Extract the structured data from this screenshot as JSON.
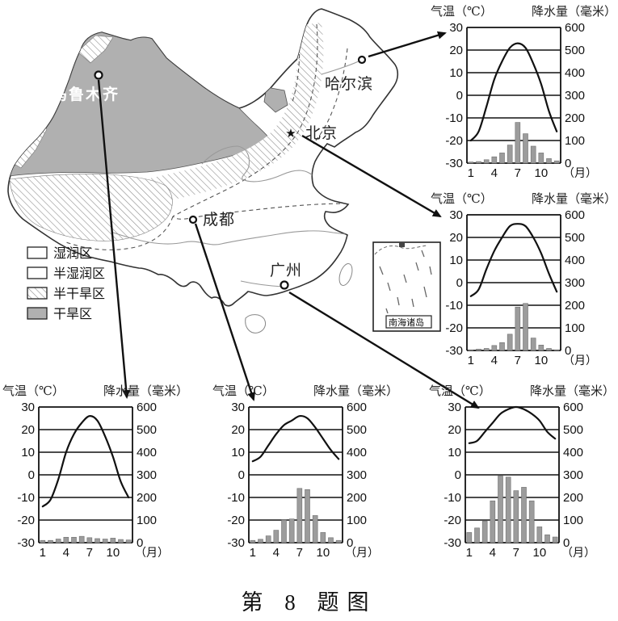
{
  "figure": {
    "caption": "第 8 题图"
  },
  "map": {
    "legend": [
      {
        "label": "湿润区",
        "style": "white"
      },
      {
        "label": "半湿润区",
        "style": "white"
      },
      {
        "label": "半干旱区",
        "style": "hatch"
      },
      {
        "label": "干旱区",
        "style": "gray"
      }
    ],
    "cities": [
      {
        "name": "乌鲁木齐",
        "marker": "circle"
      },
      {
        "name": "哈尔滨",
        "marker": "circle"
      },
      {
        "name": "北京",
        "marker": "star",
        "marker_glyph": "★"
      },
      {
        "name": "成都",
        "marker": "circle"
      },
      {
        "name": "广州",
        "marker": "circle"
      }
    ],
    "inset_label": "南海诸岛",
    "colors": {
      "arid_fill": "#b0b0b0",
      "outline": "#333333",
      "bar_fill": "#9c9c9c",
      "line": "#111111"
    }
  },
  "chart_axes": {
    "temp_label": "气温（℃）",
    "precip_label": "降水量（毫米）",
    "temp_ticks": [
      30,
      20,
      10,
      0,
      -10,
      -20,
      -30
    ],
    "precip_ticks": [
      600,
      500,
      400,
      300,
      200,
      100,
      0
    ],
    "x_tick_labels": [
      "1",
      "4",
      "7",
      "10"
    ],
    "x_unit_label": "（月）",
    "temp_axis_range": [
      -30,
      30
    ],
    "precip_axis_range": [
      0,
      600
    ]
  },
  "chart_data": [
    {
      "type": "line+bar",
      "city": "哈尔滨",
      "position": "top-right",
      "x": [
        1,
        2,
        3,
        4,
        5,
        6,
        7,
        8,
        9,
        10,
        11,
        12
      ],
      "temperature_c": [
        -20,
        -16,
        -5,
        7,
        15,
        21,
        23,
        21,
        14,
        5,
        -7,
        -16
      ],
      "precipitation_mm": [
        5,
        7,
        15,
        28,
        45,
        80,
        180,
        130,
        75,
        45,
        20,
        10
      ]
    },
    {
      "type": "line+bar",
      "city": "北京",
      "position": "middle-right",
      "x": [
        1,
        2,
        3,
        4,
        5,
        6,
        7,
        8,
        9,
        10,
        11,
        12
      ],
      "temperature_c": [
        -6,
        -3,
        6,
        14,
        20,
        25,
        26,
        25,
        20,
        13,
        4,
        -4
      ],
      "precipitation_mm": [
        3,
        6,
        9,
        22,
        35,
        72,
        192,
        208,
        55,
        24,
        9,
        3
      ]
    },
    {
      "type": "line+bar",
      "city": "乌鲁木齐",
      "position": "bottom-left",
      "x": [
        1,
        2,
        3,
        4,
        5,
        6,
        7,
        8,
        9,
        10,
        11,
        12
      ],
      "temperature_c": [
        -14,
        -11,
        -2,
        10,
        18,
        23,
        26,
        24,
        17,
        8,
        -3,
        -10
      ],
      "precipitation_mm": [
        10,
        10,
        16,
        24,
        24,
        28,
        22,
        18,
        16,
        20,
        14,
        12
      ]
    },
    {
      "type": "line+bar",
      "city": "成都",
      "position": "bottom-middle",
      "x": [
        1,
        2,
        3,
        4,
        5,
        6,
        7,
        8,
        9,
        10,
        11,
        12
      ],
      "temperature_c": [
        6,
        8,
        13,
        18,
        22,
        24,
        26,
        25,
        21,
        16,
        11,
        7
      ],
      "precipitation_mm": [
        10,
        15,
        30,
        55,
        100,
        105,
        240,
        235,
        120,
        45,
        22,
        10
      ]
    },
    {
      "type": "line+bar",
      "city": "广州",
      "position": "bottom-right",
      "x": [
        1,
        2,
        3,
        4,
        5,
        6,
        7,
        8,
        9,
        10,
        11,
        12
      ],
      "temperature_c": [
        14,
        15,
        19,
        23,
        27,
        29,
        30,
        29,
        27,
        24,
        19,
        16
      ],
      "precipitation_mm": [
        45,
        65,
        95,
        185,
        295,
        290,
        230,
        245,
        185,
        70,
        35,
        25
      ]
    }
  ]
}
